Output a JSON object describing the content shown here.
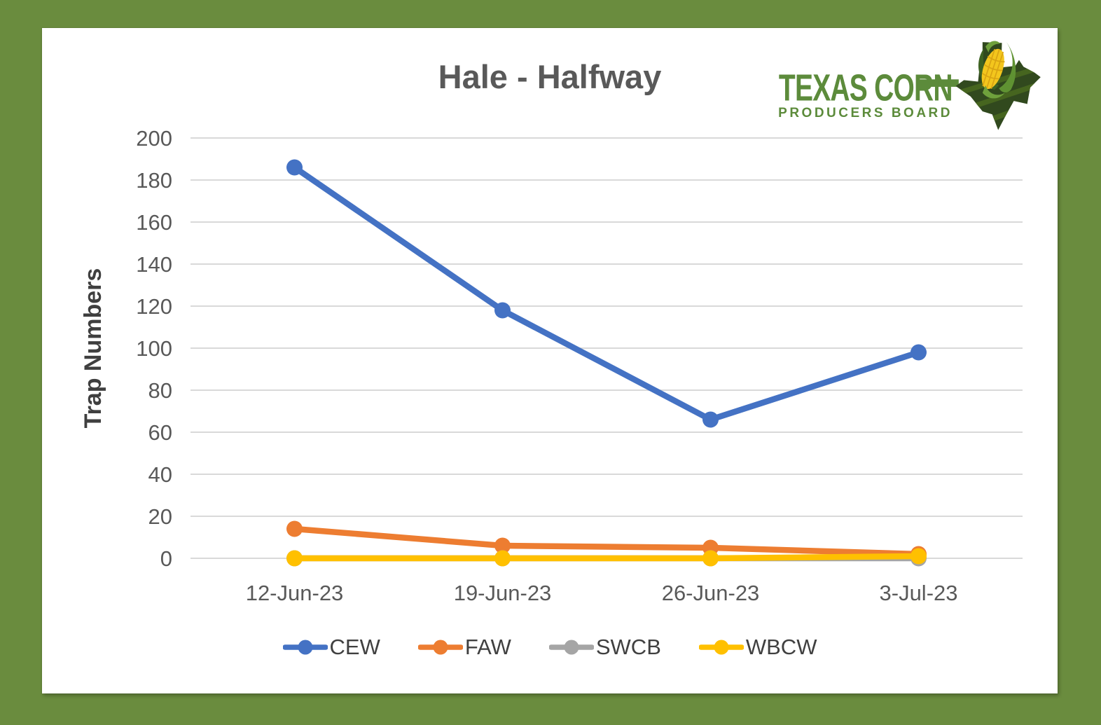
{
  "frame": {
    "background_color": "#6A8C3E",
    "card_color": "#FFFFFF"
  },
  "header": {
    "title": "Hale - Halfway",
    "title_color": "#595959"
  },
  "logo": {
    "line1": "TEXAS CORN",
    "line2": "PRODUCERS BOARD",
    "text_color": "#5C8B3B",
    "state_color": "#31491E",
    "state_stripe_color": "#46651F",
    "corn_color": "#F3C61D",
    "husk_color": "#5F9232"
  },
  "chart_data": {
    "type": "line",
    "title": "Hale - Halfway",
    "xlabel": "",
    "ylabel": "Trap Numbers",
    "categories": [
      "12-Jun-23",
      "19-Jun-23",
      "26-Jun-23",
      "3-Jul-23"
    ],
    "series": [
      {
        "name": "CEW",
        "color": "#4472C4",
        "values": [
          186,
          118,
          66,
          98
        ]
      },
      {
        "name": "FAW",
        "color": "#ED7D31",
        "values": [
          14,
          6,
          5,
          2
        ]
      },
      {
        "name": "SWCB",
        "color": "#A5A5A5",
        "values": [
          0,
          0,
          0,
          0
        ]
      },
      {
        "name": "WBCW",
        "color": "#FFC000",
        "values": [
          0,
          0,
          0,
          1
        ]
      }
    ],
    "ylim": [
      0,
      200
    ],
    "ytick_step": 20,
    "grid": true,
    "grid_color": "#D9D9D9",
    "tick_label_color": "#595959",
    "axis_title_color": "#3F3F3F",
    "legend_position": "bottom"
  }
}
